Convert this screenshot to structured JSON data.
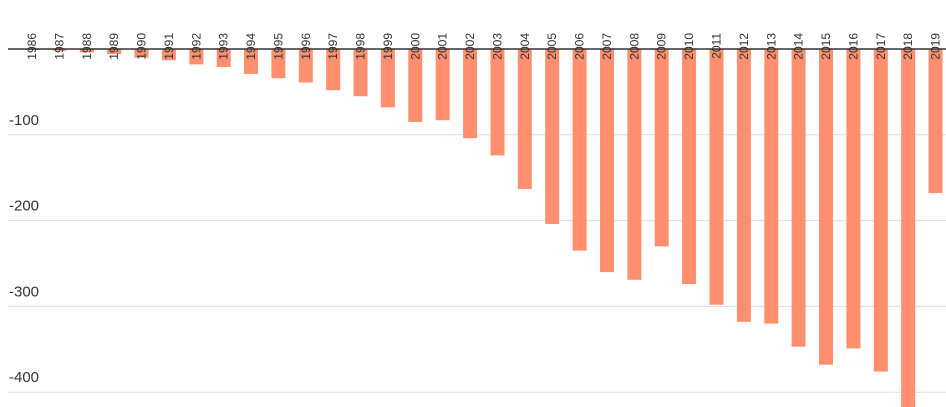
{
  "chart_data": {
    "type": "bar",
    "title": "",
    "xlabel": "",
    "ylabel": "",
    "bar_color": "#ff8f6e",
    "grid": true,
    "gridline_color": "#dddddd",
    "axis_line_color": "#333333",
    "ylim": [
      -420,
      0
    ],
    "yticks": [
      {
        "value": -100,
        "label": "-100"
      },
      {
        "value": -200,
        "label": "-200"
      },
      {
        "value": -300,
        "label": "-300"
      },
      {
        "value": -400,
        "label": "-400"
      }
    ],
    "categories": [
      "1986",
      "1987",
      "1988",
      "1989",
      "1990",
      "1991",
      "1992",
      "1993",
      "1994",
      "1995",
      "1996",
      "1997",
      "1998",
      "1999",
      "2000",
      "2001",
      "2002",
      "2003",
      "2004",
      "2005",
      "2006",
      "2007",
      "2008",
      "2009",
      "2010",
      "2011",
      "2012",
      "2013",
      "2014",
      "2015",
      "2016",
      "2017",
      "2018",
      "2019"
    ],
    "values": [
      -1,
      -2,
      -4,
      -6,
      -10,
      -13,
      -18,
      -21,
      -29,
      -34,
      -39,
      -48,
      -55,
      -68,
      -85,
      -83,
      -104,
      -124,
      -163,
      -204,
      -235,
      -260,
      -269,
      -230,
      -274,
      -298,
      -318,
      -320,
      -347,
      -368,
      -349,
      -376,
      -420,
      -168
    ]
  }
}
